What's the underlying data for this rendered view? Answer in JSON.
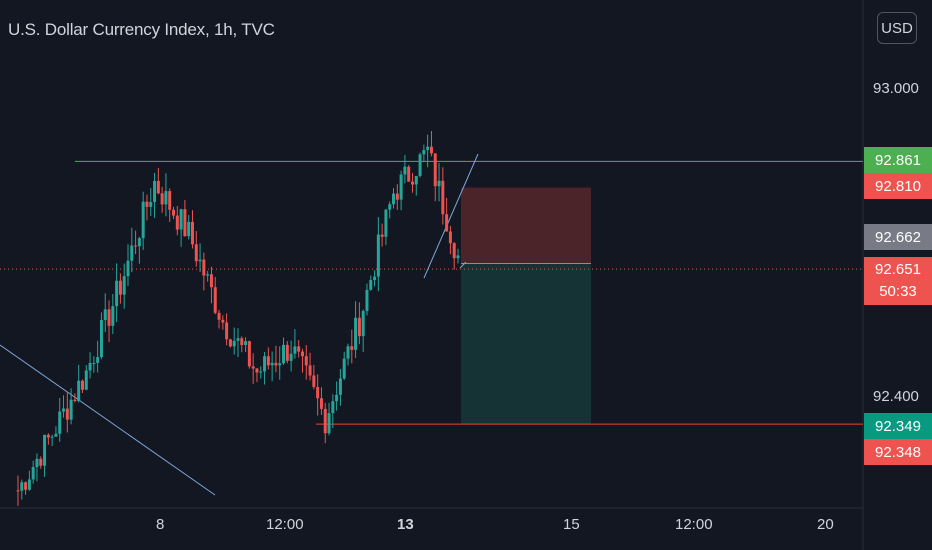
{
  "header": {
    "title": "U.S. Dollar Currency Index, 1h, TVC",
    "currency_button": "USD"
  },
  "colors": {
    "background": "#131722",
    "up_candle": "#26a69a",
    "down_candle": "#ef5350",
    "resistance_line": "#4caf50",
    "support_line": "#f44336",
    "trend_line": "#7ea6d6",
    "stop_zone": "#4a2429",
    "target_zone": "#153235"
  },
  "price_tags": [
    {
      "label": "92.861",
      "color": "#4caf50"
    },
    {
      "label": "92.810",
      "color": "#ef5350"
    },
    {
      "label": "92.662",
      "color": "#787b86"
    },
    {
      "label": "92.651",
      "countdown": "50:33",
      "color": "#ef5350"
    },
    {
      "label": "92.349",
      "color": "#089981"
    },
    {
      "label": "92.348",
      "color": "#ef5350"
    }
  ],
  "chart_data": {
    "type": "candlestick",
    "title": "U.S. Dollar Currency Index, 1h, TVC",
    "y_tick_labels": [
      "93.000",
      "92.400"
    ],
    "x_tick_labels": [
      "8",
      "12:00",
      "13",
      "15",
      "12:00",
      "20"
    ],
    "ylim": [
      92.19,
      93.1
    ],
    "levels": {
      "resistance": 92.861,
      "current": 92.651,
      "support": 92.349,
      "entry": 92.662,
      "stop": 92.81
    },
    "key_points": [
      92.22,
      92.33,
      92.45,
      92.62,
      92.82,
      92.72,
      92.55,
      92.45,
      92.5,
      92.36,
      92.55,
      92.8,
      92.88,
      92.65
    ]
  }
}
